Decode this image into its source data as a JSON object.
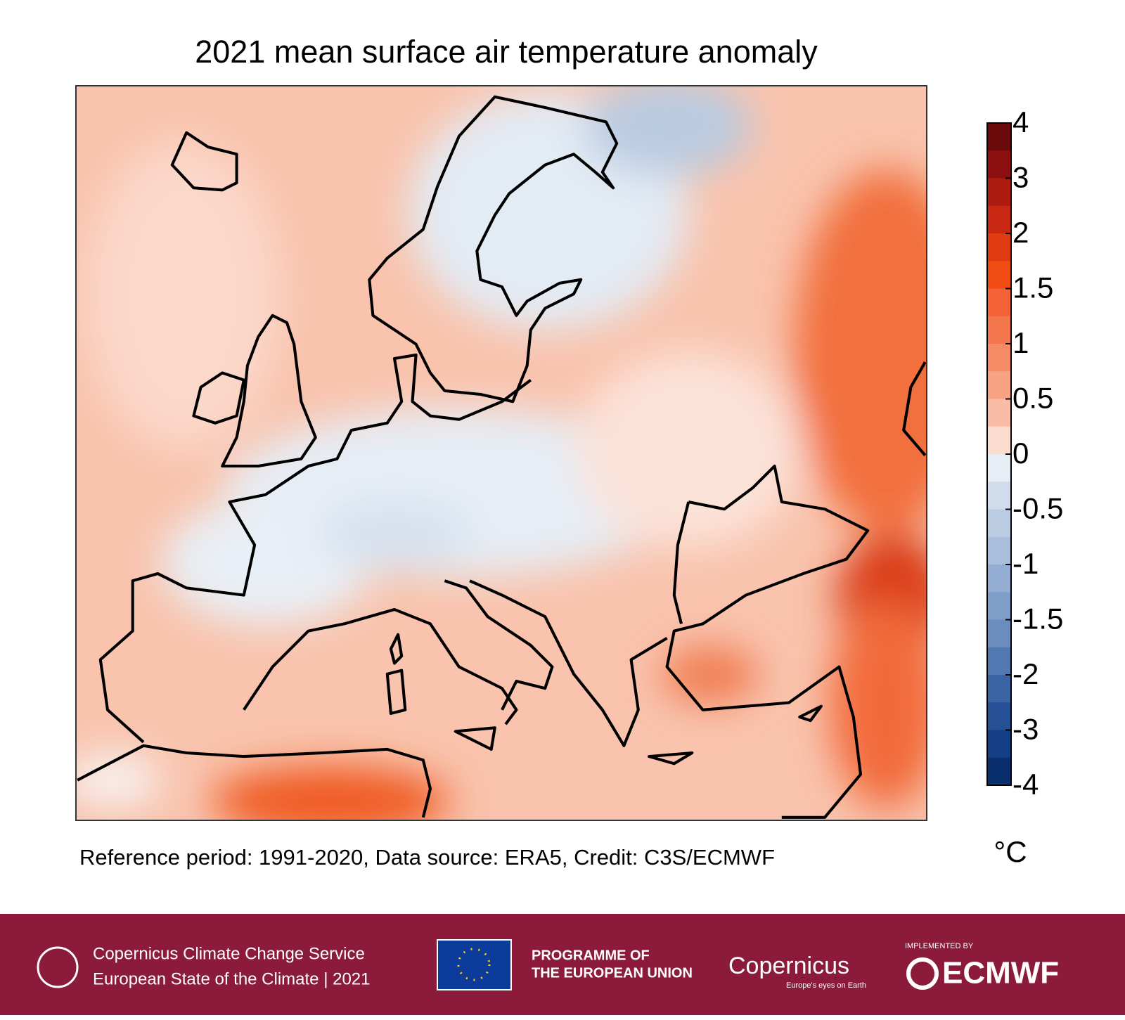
{
  "title": "2021 mean surface air temperature anomaly",
  "footnote": "Reference period: 1991-2020, Data source: ERA5, Credit: C3S/ECMWF",
  "colorbar": {
    "unit": "°C",
    "ticks": [
      4,
      3,
      2,
      1.5,
      1,
      0.5,
      0,
      -0.5,
      -1,
      -1.5,
      -2,
      -3,
      -4
    ],
    "colors": [
      "#6a0a0a",
      "#8c0f0f",
      "#ad1a10",
      "#c92812",
      "#e03a12",
      "#f04c14",
      "#f26236",
      "#f4764c",
      "#f68c66",
      "#f6a283",
      "#f9bca6",
      "#fcdccf",
      "#e6edf5",
      "#d0dcec",
      "#bccde3",
      "#a8bedb",
      "#93aed2",
      "#7f9ec8",
      "#6b8dbe",
      "#5379b2",
      "#3b64a4",
      "#255096",
      "#143f86",
      "#0a2f6e"
    ]
  },
  "footer": {
    "service": "Copernicus Climate Change Service",
    "report": "European State of the Climate | 2021",
    "programme": [
      "PROGRAMME OF",
      "THE EUROPEAN UNION"
    ],
    "copernicus": "Copernicus",
    "tagline": "Europe's eyes on Earth",
    "implemented": "IMPLEMENTED BY",
    "ecmwf": "ECMWF"
  }
}
